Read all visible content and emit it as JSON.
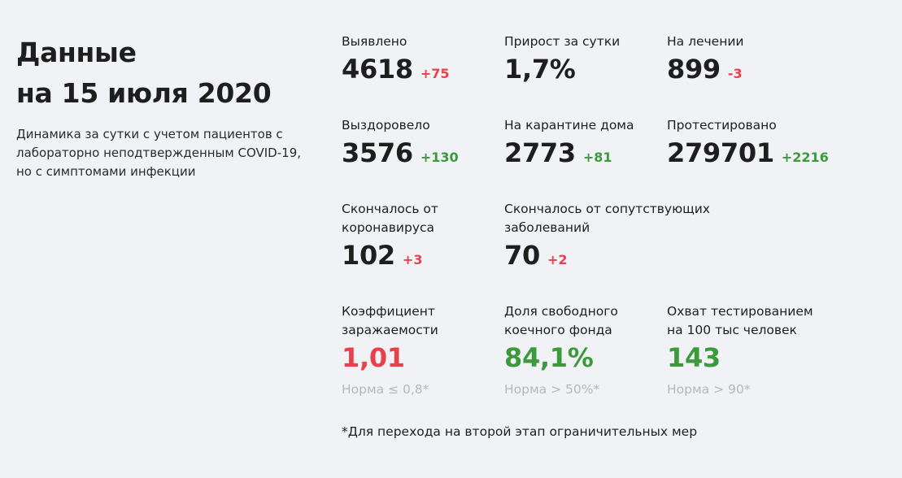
{
  "header": {
    "title_line1": "Данные",
    "title_line2": "на 15 июля 2020",
    "description": "Динамика за сутки с учетом пациентов с лабораторно неподтвержденным COVID-19, но с симптомами инфекции"
  },
  "stats": {
    "detected": {
      "label": "Выявлено",
      "value": "4618",
      "delta": "+75",
      "delta_color": "red"
    },
    "daily_growth": {
      "label": "Прирост за сутки",
      "value": "1,7%"
    },
    "in_treatment": {
      "label": "На лечении",
      "value": "899",
      "delta": "-3",
      "delta_color": "red"
    },
    "recovered": {
      "label": "Выздоровело",
      "value": "3576",
      "delta": "+130",
      "delta_color": "green"
    },
    "home_quarantine": {
      "label": "На карантине дома",
      "value": "2773",
      "delta": "+81",
      "delta_color": "green"
    },
    "tested": {
      "label": "Протестировано",
      "value": "279701",
      "delta": "+2216",
      "delta_color": "green"
    },
    "died_covid": {
      "label_line1": "Скончалось от",
      "label_line2": "коронавируса",
      "value": "102",
      "delta": "+3",
      "delta_color": "red"
    },
    "died_comorbid": {
      "label_line1": "Скончалось от сопутствующих",
      "label_line2": "заболеваний",
      "value": "70",
      "delta": "+2",
      "delta_color": "red"
    },
    "infection_rate": {
      "label_line1": "Коэффициент",
      "label_line2": "заражаемости",
      "value": "1,01",
      "value_color": "red",
      "norm": "Норма ≤ 0,8*"
    },
    "free_beds": {
      "label_line1": "Доля свободного",
      "label_line2": "коечного фонда",
      "value": "84,1%",
      "value_color": "green",
      "norm": "Норма > 50%*"
    },
    "testing_coverage": {
      "label_line1": "Охват тестированием",
      "label_line2": "на 100 тыс человек",
      "value": "143",
      "value_color": "green",
      "norm": "Норма > 90*"
    }
  },
  "footnote": "*Для перехода на второй этап ограничительных мер",
  "colors": {
    "background": "#f1f2f6",
    "red": "#e8414a",
    "green": "#3c9a3d",
    "muted": "#b5b8c0"
  }
}
